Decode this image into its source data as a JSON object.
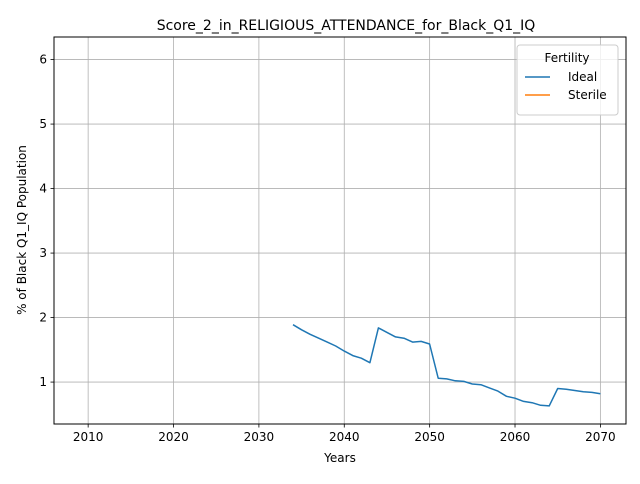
{
  "chart_data": {
    "type": "line",
    "title": "Score_2_in_RELIGIOUS_ATTENDANCE_for_Black_Q1_IQ",
    "xlabel": "Years",
    "ylabel": "% of Black Q1_IQ Population",
    "xlim": [
      2006,
      2073
    ],
    "ylim": [
      0.35,
      6.35
    ],
    "xticks": [
      2010,
      2020,
      2030,
      2040,
      2050,
      2060,
      2070
    ],
    "yticks": [
      1,
      2,
      3,
      4,
      5,
      6
    ],
    "grid": true,
    "legend": {
      "title": "Fertility",
      "placement": "top-right",
      "entries": [
        "Ideal",
        "Sterile"
      ]
    },
    "series": [
      {
        "name": "Ideal",
        "color": "#1f77b4",
        "x": [
          2034,
          2035,
          2036,
          2037,
          2038,
          2039,
          2040,
          2041,
          2042,
          2043,
          2044,
          2045,
          2046,
          2047,
          2048,
          2049,
          2050,
          2051,
          2052,
          2053,
          2054,
          2055,
          2056,
          2057,
          2058,
          2059,
          2060,
          2061,
          2062,
          2063,
          2064,
          2065,
          2066,
          2067,
          2068,
          2069,
          2070
        ],
        "y": [
          1.89,
          1.81,
          1.74,
          1.68,
          1.62,
          1.56,
          1.48,
          1.41,
          1.37,
          1.3,
          1.84,
          1.77,
          1.7,
          1.68,
          1.62,
          1.63,
          1.59,
          1.06,
          1.05,
          1.02,
          1.01,
          0.97,
          0.96,
          0.91,
          0.86,
          0.78,
          0.75,
          0.7,
          0.68,
          0.64,
          0.63,
          0.9,
          0.89,
          0.87,
          0.85,
          0.84,
          0.82
        ]
      },
      {
        "name": "Sterile",
        "color": "#ff7f0e",
        "x": [],
        "y": []
      }
    ]
  }
}
